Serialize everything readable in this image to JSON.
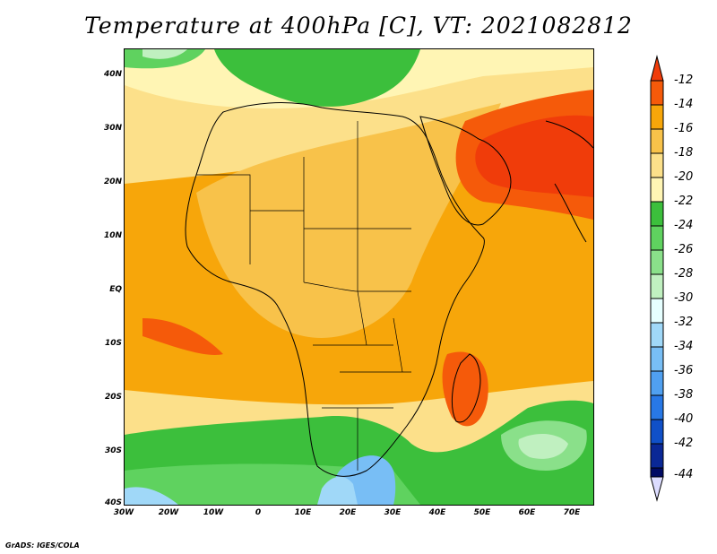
{
  "title": "Temperature at 400hPa [C], VT: 2021082812",
  "footer": "GrADS: IGES/COLA",
  "map": {
    "lat_labels": [
      "40N",
      "30N",
      "20N",
      "10N",
      "EQ",
      "10S",
      "20S",
      "30S",
      "40S"
    ],
    "lon_labels": [
      "30W",
      "20W",
      "10W",
      "0",
      "10E",
      "20E",
      "30E",
      "40E",
      "50E",
      "60E",
      "70E"
    ]
  },
  "colorbar": {
    "labels": [
      "-12",
      "-14",
      "-16",
      "-18",
      "-20",
      "-22",
      "-24",
      "-26",
      "-28",
      "-30",
      "-32",
      "-34",
      "-36",
      "-38",
      "-40",
      "-42",
      "-44"
    ],
    "colors": [
      "#f03c0a",
      "#f55a0a",
      "#f7a60a",
      "#f8c24a",
      "#fce08a",
      "#fff5b4",
      "#3cbf3c",
      "#5fd25f",
      "#8ae08a",
      "#c0f0c0",
      "#e6ffff",
      "#a0d8f8",
      "#78bef5",
      "#50a0f0",
      "#2878e6",
      "#1050c8",
      "#0a2896",
      "#000a64",
      "#dcdcff"
    ]
  },
  "legend_palette": {
    "deep_orange": "#f03c0a",
    "orange": "#f7a60a",
    "light_orange": "#f8c24a",
    "pale_yellow": "#fce08a",
    "green": "#3cbf3c",
    "light_blue": "#78bef5"
  }
}
